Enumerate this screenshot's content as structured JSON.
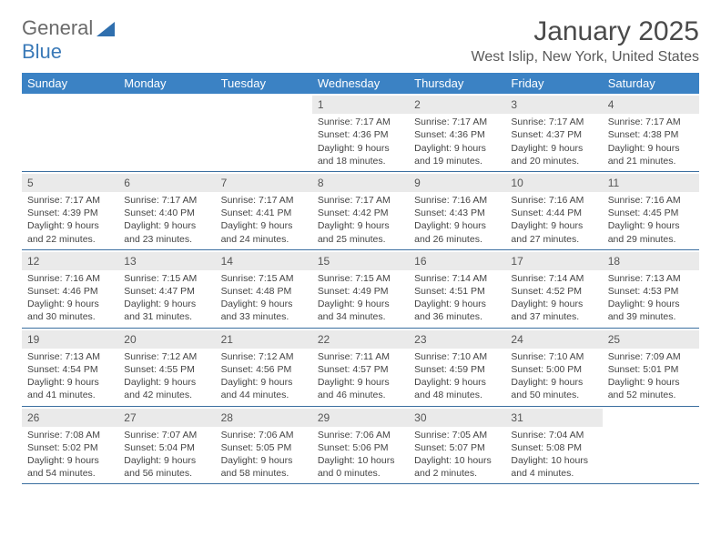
{
  "logo": {
    "text1": "General",
    "text2": "Blue"
  },
  "title": "January 2025",
  "location": "West Islip, New York, United States",
  "colors": {
    "header_bg": "#3b82c4",
    "header_text": "#ffffff",
    "daynum_bg": "#eaeaea",
    "week_border": "#3b6fa0",
    "text": "#444444"
  },
  "day_names": [
    "Sunday",
    "Monday",
    "Tuesday",
    "Wednesday",
    "Thursday",
    "Friday",
    "Saturday"
  ],
  "weeks": [
    [
      {
        "empty": true
      },
      {
        "empty": true
      },
      {
        "empty": true
      },
      {
        "num": "1",
        "sunrise": "Sunrise: 7:17 AM",
        "sunset": "Sunset: 4:36 PM",
        "d1": "Daylight: 9 hours",
        "d2": "and 18 minutes."
      },
      {
        "num": "2",
        "sunrise": "Sunrise: 7:17 AM",
        "sunset": "Sunset: 4:36 PM",
        "d1": "Daylight: 9 hours",
        "d2": "and 19 minutes."
      },
      {
        "num": "3",
        "sunrise": "Sunrise: 7:17 AM",
        "sunset": "Sunset: 4:37 PM",
        "d1": "Daylight: 9 hours",
        "d2": "and 20 minutes."
      },
      {
        "num": "4",
        "sunrise": "Sunrise: 7:17 AM",
        "sunset": "Sunset: 4:38 PM",
        "d1": "Daylight: 9 hours",
        "d2": "and 21 minutes."
      }
    ],
    [
      {
        "num": "5",
        "sunrise": "Sunrise: 7:17 AM",
        "sunset": "Sunset: 4:39 PM",
        "d1": "Daylight: 9 hours",
        "d2": "and 22 minutes."
      },
      {
        "num": "6",
        "sunrise": "Sunrise: 7:17 AM",
        "sunset": "Sunset: 4:40 PM",
        "d1": "Daylight: 9 hours",
        "d2": "and 23 minutes."
      },
      {
        "num": "7",
        "sunrise": "Sunrise: 7:17 AM",
        "sunset": "Sunset: 4:41 PM",
        "d1": "Daylight: 9 hours",
        "d2": "and 24 minutes."
      },
      {
        "num": "8",
        "sunrise": "Sunrise: 7:17 AM",
        "sunset": "Sunset: 4:42 PM",
        "d1": "Daylight: 9 hours",
        "d2": "and 25 minutes."
      },
      {
        "num": "9",
        "sunrise": "Sunrise: 7:16 AM",
        "sunset": "Sunset: 4:43 PM",
        "d1": "Daylight: 9 hours",
        "d2": "and 26 minutes."
      },
      {
        "num": "10",
        "sunrise": "Sunrise: 7:16 AM",
        "sunset": "Sunset: 4:44 PM",
        "d1": "Daylight: 9 hours",
        "d2": "and 27 minutes."
      },
      {
        "num": "11",
        "sunrise": "Sunrise: 7:16 AM",
        "sunset": "Sunset: 4:45 PM",
        "d1": "Daylight: 9 hours",
        "d2": "and 29 minutes."
      }
    ],
    [
      {
        "num": "12",
        "sunrise": "Sunrise: 7:16 AM",
        "sunset": "Sunset: 4:46 PM",
        "d1": "Daylight: 9 hours",
        "d2": "and 30 minutes."
      },
      {
        "num": "13",
        "sunrise": "Sunrise: 7:15 AM",
        "sunset": "Sunset: 4:47 PM",
        "d1": "Daylight: 9 hours",
        "d2": "and 31 minutes."
      },
      {
        "num": "14",
        "sunrise": "Sunrise: 7:15 AM",
        "sunset": "Sunset: 4:48 PM",
        "d1": "Daylight: 9 hours",
        "d2": "and 33 minutes."
      },
      {
        "num": "15",
        "sunrise": "Sunrise: 7:15 AM",
        "sunset": "Sunset: 4:49 PM",
        "d1": "Daylight: 9 hours",
        "d2": "and 34 minutes."
      },
      {
        "num": "16",
        "sunrise": "Sunrise: 7:14 AM",
        "sunset": "Sunset: 4:51 PM",
        "d1": "Daylight: 9 hours",
        "d2": "and 36 minutes."
      },
      {
        "num": "17",
        "sunrise": "Sunrise: 7:14 AM",
        "sunset": "Sunset: 4:52 PM",
        "d1": "Daylight: 9 hours",
        "d2": "and 37 minutes."
      },
      {
        "num": "18",
        "sunrise": "Sunrise: 7:13 AM",
        "sunset": "Sunset: 4:53 PM",
        "d1": "Daylight: 9 hours",
        "d2": "and 39 minutes."
      }
    ],
    [
      {
        "num": "19",
        "sunrise": "Sunrise: 7:13 AM",
        "sunset": "Sunset: 4:54 PM",
        "d1": "Daylight: 9 hours",
        "d2": "and 41 minutes."
      },
      {
        "num": "20",
        "sunrise": "Sunrise: 7:12 AM",
        "sunset": "Sunset: 4:55 PM",
        "d1": "Daylight: 9 hours",
        "d2": "and 42 minutes."
      },
      {
        "num": "21",
        "sunrise": "Sunrise: 7:12 AM",
        "sunset": "Sunset: 4:56 PM",
        "d1": "Daylight: 9 hours",
        "d2": "and 44 minutes."
      },
      {
        "num": "22",
        "sunrise": "Sunrise: 7:11 AM",
        "sunset": "Sunset: 4:57 PM",
        "d1": "Daylight: 9 hours",
        "d2": "and 46 minutes."
      },
      {
        "num": "23",
        "sunrise": "Sunrise: 7:10 AM",
        "sunset": "Sunset: 4:59 PM",
        "d1": "Daylight: 9 hours",
        "d2": "and 48 minutes."
      },
      {
        "num": "24",
        "sunrise": "Sunrise: 7:10 AM",
        "sunset": "Sunset: 5:00 PM",
        "d1": "Daylight: 9 hours",
        "d2": "and 50 minutes."
      },
      {
        "num": "25",
        "sunrise": "Sunrise: 7:09 AM",
        "sunset": "Sunset: 5:01 PM",
        "d1": "Daylight: 9 hours",
        "d2": "and 52 minutes."
      }
    ],
    [
      {
        "num": "26",
        "sunrise": "Sunrise: 7:08 AM",
        "sunset": "Sunset: 5:02 PM",
        "d1": "Daylight: 9 hours",
        "d2": "and 54 minutes."
      },
      {
        "num": "27",
        "sunrise": "Sunrise: 7:07 AM",
        "sunset": "Sunset: 5:04 PM",
        "d1": "Daylight: 9 hours",
        "d2": "and 56 minutes."
      },
      {
        "num": "28",
        "sunrise": "Sunrise: 7:06 AM",
        "sunset": "Sunset: 5:05 PM",
        "d1": "Daylight: 9 hours",
        "d2": "and 58 minutes."
      },
      {
        "num": "29",
        "sunrise": "Sunrise: 7:06 AM",
        "sunset": "Sunset: 5:06 PM",
        "d1": "Daylight: 10 hours",
        "d2": "and 0 minutes."
      },
      {
        "num": "30",
        "sunrise": "Sunrise: 7:05 AM",
        "sunset": "Sunset: 5:07 PM",
        "d1": "Daylight: 10 hours",
        "d2": "and 2 minutes."
      },
      {
        "num": "31",
        "sunrise": "Sunrise: 7:04 AM",
        "sunset": "Sunset: 5:08 PM",
        "d1": "Daylight: 10 hours",
        "d2": "and 4 minutes."
      },
      {
        "empty": true
      }
    ]
  ]
}
